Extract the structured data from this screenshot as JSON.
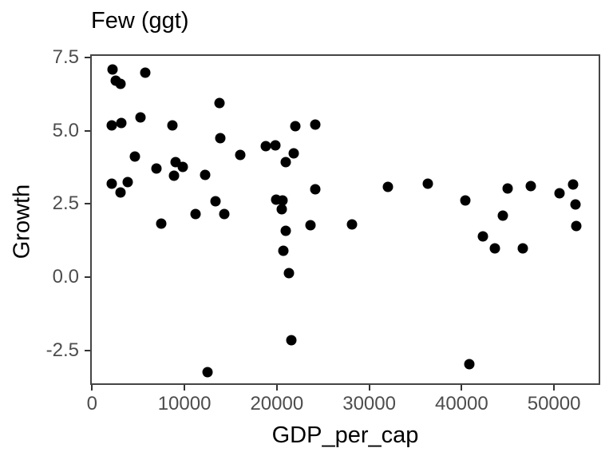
{
  "colors": {
    "background": "#ffffff",
    "point": "#000000",
    "panel_border": "#454545",
    "tick": "#333333",
    "tick_label": "#4d4d4d",
    "title": "#000000"
  },
  "chart_data": {
    "type": "scatter",
    "title": "Few (ggt)",
    "xlabel": "GDP_per_cap",
    "ylabel": "Growth",
    "grid": false,
    "legend": false,
    "xlim": [
      -200,
      55000
    ],
    "ylim": [
      -3.68,
      7.61
    ],
    "x_ticks": [
      0,
      10000,
      20000,
      30000,
      40000,
      50000
    ],
    "x_tick_labels": [
      "0",
      "10000",
      "20000",
      "30000",
      "40000",
      "50000"
    ],
    "y_ticks": [
      7.5,
      5.0,
      2.5,
      0.0,
      -2.5
    ],
    "y_tick_labels": [
      "7.5",
      "5.0",
      "2.5",
      "0.0",
      "-2.5"
    ],
    "points": [
      [
        2200,
        7.09
      ],
      [
        5800,
        6.98
      ],
      [
        2600,
        6.71
      ],
      [
        3100,
        6.6
      ],
      [
        13800,
        5.95
      ],
      [
        5200,
        5.46
      ],
      [
        2100,
        5.18
      ],
      [
        3200,
        5.26
      ],
      [
        8700,
        5.18
      ],
      [
        22000,
        5.16
      ],
      [
        24200,
        5.21
      ],
      [
        13900,
        4.75
      ],
      [
        18800,
        4.47
      ],
      [
        19800,
        4.5
      ],
      [
        21800,
        4.23
      ],
      [
        16000,
        4.17
      ],
      [
        4600,
        4.12
      ],
      [
        21000,
        3.93
      ],
      [
        9000,
        3.93
      ],
      [
        9800,
        3.76
      ],
      [
        7000,
        3.71
      ],
      [
        8900,
        3.47
      ],
      [
        12200,
        3.49
      ],
      [
        2100,
        3.19
      ],
      [
        3900,
        3.25
      ],
      [
        3100,
        2.89
      ],
      [
        32000,
        3.08
      ],
      [
        36300,
        3.19
      ],
      [
        24200,
        3.0
      ],
      [
        19900,
        2.65
      ],
      [
        20600,
        2.62
      ],
      [
        20500,
        2.32
      ],
      [
        13400,
        2.59
      ],
      [
        11200,
        2.16
      ],
      [
        14300,
        2.16
      ],
      [
        7500,
        1.83
      ],
      [
        21000,
        1.58
      ],
      [
        23600,
        1.77
      ],
      [
        28100,
        1.8
      ],
      [
        20700,
        0.9
      ],
      [
        21300,
        0.14
      ],
      [
        21600,
        -2.15
      ],
      [
        12500,
        -3.24
      ],
      [
        40400,
        2.62
      ],
      [
        45000,
        3.03
      ],
      [
        47500,
        3.11
      ],
      [
        50600,
        2.86
      ],
      [
        52100,
        3.16
      ],
      [
        52300,
        2.48
      ],
      [
        44500,
        2.1
      ],
      [
        52400,
        1.75
      ],
      [
        42300,
        1.39
      ],
      [
        43600,
        0.98
      ],
      [
        46600,
        0.98
      ],
      [
        40800,
        -2.97
      ]
    ]
  }
}
